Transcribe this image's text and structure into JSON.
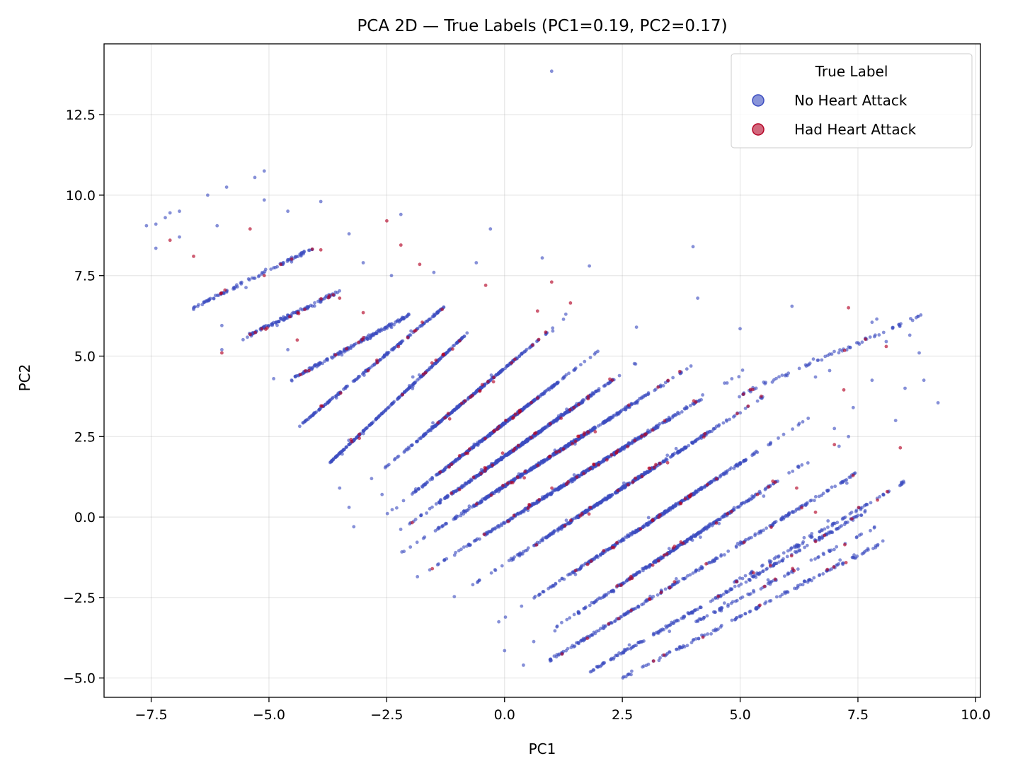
{
  "chart_data": {
    "type": "scatter",
    "title": "PCA 2D — True Labels (PC1=0.19, PC2=0.17)",
    "xlabel": "PC1",
    "ylabel": "PC2",
    "xlim": [
      -8.5,
      10.1
    ],
    "ylim": [
      -5.6,
      14.7
    ],
    "xticks": [
      -7.5,
      -5.0,
      -2.5,
      0.0,
      2.5,
      5.0,
      7.5,
      10.0
    ],
    "xtick_labels": [
      "−7.5",
      "−5.0",
      "−2.5",
      "0.0",
      "2.5",
      "5.0",
      "7.5",
      "10.0"
    ],
    "yticks": [
      -5.0,
      -2.5,
      0.0,
      2.5,
      5.0,
      7.5,
      10.0,
      12.5
    ],
    "ytick_labels": [
      "−5.0",
      "−2.5",
      "0.0",
      "2.5",
      "5.0",
      "7.5",
      "10.0",
      "12.5"
    ],
    "grid": true,
    "legend": {
      "title": "True Label",
      "placement": "top-right",
      "entries": [
        "No Heart Attack",
        "Had Heart Attack"
      ]
    },
    "colors": {
      "no_heart_attack": "#3b4cc0",
      "had_heart_attack": "#b40426"
    },
    "series": [
      {
        "name": "No Heart Attack",
        "bands": [
          {
            "x0": -4.8,
            "y0": -1.6,
            "x1": 5.8,
            "y1": 5.6,
            "density": 0.02
          },
          {
            "x0": -4.5,
            "y0": 4.3,
            "x1": -2.0,
            "y1": 6.3,
            "density": 0.25
          },
          {
            "x0": -5.5,
            "y0": 5.6,
            "x1": -3.5,
            "y1": 7.0,
            "density": 0.15
          },
          {
            "x0": -6.6,
            "y0": 6.5,
            "x1": -4.0,
            "y1": 8.4,
            "density": 0.1
          },
          {
            "x0": -4.3,
            "y0": 2.9,
            "x1": -1.3,
            "y1": 6.5,
            "density": 0.3
          },
          {
            "x0": -3.7,
            "y0": 1.7,
            "x1": -0.8,
            "y1": 5.7,
            "density": 0.45
          },
          {
            "x0": -2.9,
            "y0": 1.1,
            "x1": 1.3,
            "y1": 6.2,
            "density": 0.55
          },
          {
            "x0": -2.6,
            "y0": 0.0,
            "x1": 2.3,
            "y1": 5.5,
            "density": 0.75
          },
          {
            "x0": -2.4,
            "y0": -0.6,
            "x1": 3.3,
            "y1": 5.3,
            "density": 1.0
          },
          {
            "x0": -2.3,
            "y0": -1.2,
            "x1": 4.4,
            "y1": 5.1,
            "density": 1.0
          },
          {
            "x0": -2.1,
            "y0": -2.1,
            "x1": 5.4,
            "y1": 4.8,
            "density": 0.95
          },
          {
            "x0": -1.2,
            "y0": -2.6,
            "x1": 6.2,
            "y1": 4.4,
            "density": 0.85
          },
          {
            "x0": -0.3,
            "y0": -3.4,
            "x1": 6.8,
            "y1": 3.4,
            "density": 0.75
          },
          {
            "x0": 0.4,
            "y0": -4.1,
            "x1": 6.9,
            "y1": 2.2,
            "density": 0.6
          },
          {
            "x0": 0.9,
            "y0": -4.5,
            "x1": 7.4,
            "y1": 1.3,
            "density": 0.45
          },
          {
            "x0": 1.8,
            "y0": -4.8,
            "x1": 7.7,
            "y1": 0.2,
            "density": 0.35
          },
          {
            "x0": 2.5,
            "y0": -5.0,
            "x1": 8.0,
            "y1": -0.8,
            "density": 0.2
          },
          {
            "x0": 4.8,
            "y0": -2.1,
            "x1": 8.5,
            "y1": 1.1,
            "density": 0.1
          },
          {
            "x0": 4.0,
            "y0": -3.3,
            "x1": 7.9,
            "y1": -0.3,
            "density": 0.06
          },
          {
            "x0": 5.0,
            "y0": 3.8,
            "x1": 8.9,
            "y1": 6.3,
            "density": 0.05
          }
        ],
        "outliers": [
          [
            1.0,
            13.85
          ],
          [
            -5.1,
            10.75
          ],
          [
            -5.3,
            10.55
          ],
          [
            -5.9,
            10.25
          ],
          [
            -6.3,
            10.0
          ],
          [
            -4.6,
            9.5
          ],
          [
            -3.9,
            9.8
          ],
          [
            -5.1,
            9.85
          ],
          [
            -7.6,
            9.05
          ],
          [
            -7.4,
            9.1
          ],
          [
            -7.2,
            9.3
          ],
          [
            -7.1,
            9.45
          ],
          [
            -6.9,
            9.5
          ],
          [
            -2.2,
            9.4
          ],
          [
            -7.4,
            8.35
          ],
          [
            -6.9,
            8.7
          ],
          [
            -6.1,
            9.05
          ],
          [
            -3.3,
            8.8
          ],
          [
            -0.3,
            8.95
          ],
          [
            4.0,
            8.4
          ],
          [
            -6.6,
            6.45
          ],
          [
            -6.0,
            5.95
          ],
          [
            -6.0,
            5.2
          ],
          [
            -4.9,
            4.3
          ],
          [
            -4.6,
            5.2
          ],
          [
            -3.0,
            7.9
          ],
          [
            -2.4,
            7.5
          ],
          [
            -1.5,
            7.6
          ],
          [
            -0.6,
            7.9
          ],
          [
            0.8,
            8.05
          ],
          [
            1.8,
            7.8
          ],
          [
            1.3,
            6.3
          ],
          [
            2.8,
            5.9
          ],
          [
            4.1,
            6.8
          ],
          [
            5.0,
            5.85
          ],
          [
            6.1,
            6.55
          ],
          [
            7.8,
            6.05
          ],
          [
            7.9,
            6.15
          ],
          [
            8.1,
            5.45
          ],
          [
            8.6,
            5.65
          ],
          [
            8.8,
            5.1
          ],
          [
            9.2,
            3.55
          ],
          [
            8.9,
            4.25
          ],
          [
            8.5,
            4.0
          ],
          [
            8.3,
            3.0
          ],
          [
            7.8,
            4.25
          ],
          [
            6.9,
            4.55
          ],
          [
            6.6,
            4.35
          ],
          [
            7.5,
            0.05
          ],
          [
            7.4,
            3.4
          ],
          [
            7.0,
            2.75
          ],
          [
            5.5,
            0.65
          ],
          [
            6.1,
            0.15
          ],
          [
            3.5,
            -3.55
          ],
          [
            0.0,
            -4.15
          ],
          [
            0.4,
            -4.6
          ],
          [
            -2.6,
            0.7
          ],
          [
            -3.3,
            0.3
          ],
          [
            -3.2,
            -0.3
          ],
          [
            -3.5,
            0.9
          ],
          [
            7.1,
            2.2
          ],
          [
            7.3,
            2.5
          ]
        ]
      },
      {
        "name": "Had Heart Attack",
        "count_hint": 320,
        "outliers": [
          [
            -5.4,
            8.95
          ],
          [
            -7.1,
            8.6
          ],
          [
            -6.6,
            8.1
          ],
          [
            -2.2,
            8.45
          ],
          [
            -2.5,
            9.2
          ],
          [
            -1.8,
            7.85
          ],
          [
            -0.4,
            7.2
          ],
          [
            1.0,
            7.3
          ],
          [
            1.4,
            6.65
          ],
          [
            7.3,
            6.5
          ],
          [
            8.1,
            5.3
          ],
          [
            8.4,
            2.15
          ],
          [
            7.2,
            3.95
          ],
          [
            7.0,
            2.25
          ],
          [
            6.2,
            0.9
          ],
          [
            6.6,
            0.15
          ],
          [
            -6.0,
            5.1
          ],
          [
            -5.1,
            7.5
          ],
          [
            -3.9,
            8.3
          ],
          [
            -4.4,
            5.5
          ],
          [
            -3.5,
            6.8
          ],
          [
            -3.0,
            6.35
          ],
          [
            0.7,
            6.4
          ]
        ]
      }
    ]
  }
}
